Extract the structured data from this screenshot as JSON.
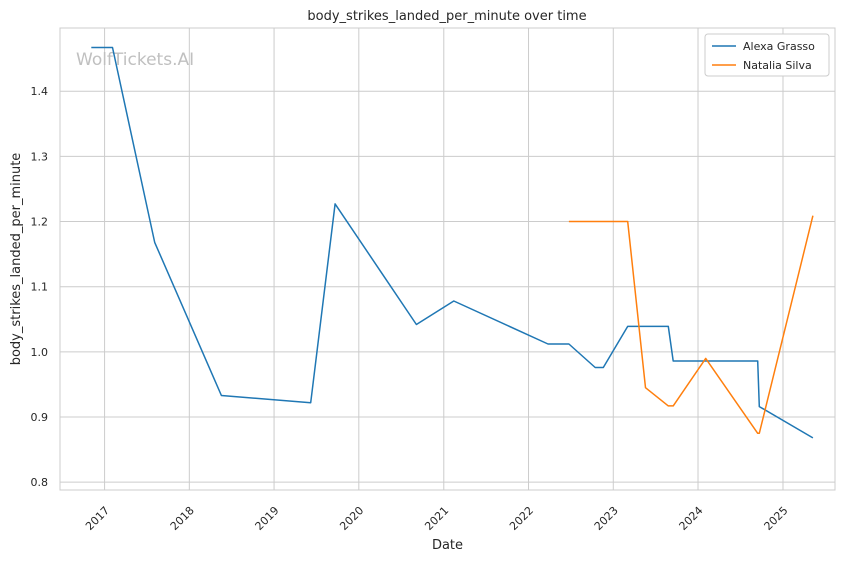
{
  "chart_data": {
    "type": "line",
    "title": "body_strikes_landed_per_minute over time",
    "xlabel": "Date",
    "ylabel": "body_strikes_landed_per_minute",
    "watermark": "WolfTickets.AI",
    "xlim": [
      "2016-06-23",
      "2025-08-13"
    ],
    "ylim": [
      0.788,
      1.497
    ],
    "x_ticks": [
      "2017",
      "2018",
      "2019",
      "2020",
      "2021",
      "2022",
      "2023",
      "2024",
      "2025"
    ],
    "y_ticks": [
      "0.8",
      "0.9",
      "1.0",
      "1.1",
      "1.2",
      "1.3",
      "1.4"
    ],
    "grid": true,
    "legend_position": "top-right",
    "series": [
      {
        "name": "Alexa Grasso",
        "color": "#1f77b4",
        "x": [
          "2016-11-05",
          "2017-02-04",
          "2017-08-05",
          "2018-05-19",
          "2019-06-08",
          "2019-09-21",
          "2020-09-05",
          "2021-02-13",
          "2022-03-26",
          "2022-06-24",
          "2022-10-15",
          "2022-11-19",
          "2023-03-04",
          "2023-08-26",
          "2023-09-16",
          "2024-09-14",
          "2024-09-21",
          "2025-05-10"
        ],
        "values": [
          1.467,
          1.467,
          1.168,
          0.933,
          0.922,
          1.227,
          1.042,
          1.078,
          1.012,
          1.012,
          0.976,
          0.976,
          1.039,
          1.039,
          0.986,
          0.986,
          0.916,
          0.868
        ]
      },
      {
        "name": "Natalia Silva",
        "color": "#ff7f0e",
        "x": [
          "2022-06-24",
          "2023-03-04",
          "2023-05-20",
          "2023-08-26",
          "2023-09-16",
          "2024-02-03",
          "2024-09-14",
          "2024-09-21",
          "2025-05-10"
        ],
        "values": [
          1.2,
          1.2,
          0.945,
          0.917,
          0.917,
          0.99,
          0.875,
          0.875,
          1.209
        ]
      }
    ]
  }
}
